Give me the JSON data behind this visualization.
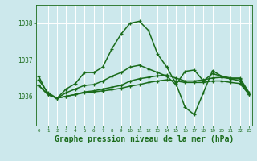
{
  "bg_color": "#cce8ec",
  "grid_color": "#ffffff",
  "line_color": "#1a6b1a",
  "xlabel": "Graphe pression niveau de la mer (hPa)",
  "xlabel_fontsize": 7,
  "ylabel_ticks": [
    1036,
    1037,
    1038
  ],
  "xticks": [
    0,
    1,
    2,
    3,
    4,
    5,
    6,
    7,
    8,
    9,
    10,
    11,
    12,
    13,
    14,
    15,
    16,
    17,
    18,
    19,
    20,
    21,
    22,
    23
  ],
  "xlim": [
    -0.3,
    23.3
  ],
  "ylim": [
    1035.2,
    1038.5
  ],
  "series": [
    [
      1036.55,
      1036.05,
      1035.95,
      1036.2,
      1036.35,
      1036.65,
      1036.65,
      1036.8,
      1037.3,
      1037.7,
      1038.0,
      1038.05,
      1037.8,
      1037.15,
      1036.8,
      1036.35,
      1035.7,
      1035.5,
      1036.1,
      1036.7,
      1036.55,
      1036.5,
      1036.5,
      1036.1
    ],
    [
      1036.3,
      1036.05,
      1035.95,
      1036.0,
      1036.05,
      1036.1,
      1036.12,
      1036.15,
      1036.18,
      1036.22,
      1036.28,
      1036.32,
      1036.38,
      1036.42,
      1036.45,
      1036.42,
      1036.38,
      1036.38,
      1036.38,
      1036.42,
      1036.42,
      1036.38,
      1036.35,
      1036.05
    ],
    [
      1036.3,
      1036.05,
      1035.95,
      1036.0,
      1036.05,
      1036.12,
      1036.15,
      1036.2,
      1036.25,
      1036.3,
      1036.42,
      1036.48,
      1036.52,
      1036.56,
      1036.58,
      1036.5,
      1036.42,
      1036.42,
      1036.45,
      1036.5,
      1036.52,
      1036.48,
      1036.42,
      1036.05
    ],
    [
      1036.45,
      1036.1,
      1035.95,
      1036.1,
      1036.2,
      1036.3,
      1036.32,
      1036.42,
      1036.55,
      1036.65,
      1036.8,
      1036.85,
      1036.75,
      1036.65,
      1036.55,
      1036.32,
      1036.68,
      1036.72,
      1036.42,
      1036.62,
      1036.55,
      1036.48,
      1036.48,
      1036.05
    ]
  ]
}
